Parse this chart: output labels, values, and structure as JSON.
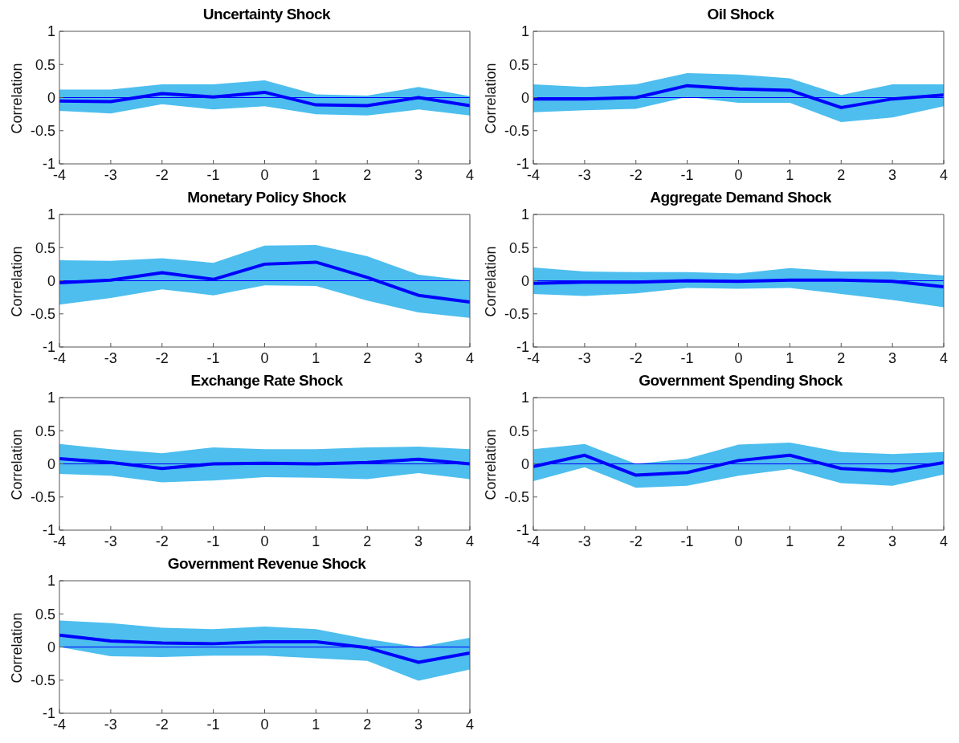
{
  "chart_data": [
    {
      "type": "line",
      "title": "Uncertainty Shock",
      "ylabel": "Correlation",
      "x": [
        -4,
        -3,
        -2,
        -1,
        0,
        1,
        2,
        3,
        4
      ],
      "xlim": [
        -4,
        4
      ],
      "xticks": [
        -4,
        -3,
        -2,
        -1,
        0,
        1,
        2,
        3,
        4
      ],
      "ylim": [
        -1,
        1
      ],
      "yticks": [
        -1,
        -0.5,
        0,
        0.5,
        1
      ],
      "grid": false,
      "legend": false,
      "marker": "none",
      "line_style": "solid",
      "ref_lines": [
        {
          "axis": "y",
          "value": 0,
          "color": "#0000ff"
        }
      ],
      "series": [
        {
          "color": "#0000ff",
          "values": [
            -0.05,
            -0.06,
            0.06,
            0.01,
            0.08,
            -0.11,
            -0.12,
            0.0,
            -0.12
          ],
          "lower": [
            -0.2,
            -0.24,
            -0.1,
            -0.18,
            -0.13,
            -0.25,
            -0.27,
            -0.18,
            -0.27
          ],
          "upper": [
            0.12,
            0.12,
            0.2,
            0.2,
            0.26,
            0.05,
            0.03,
            0.16,
            0.02
          ]
        }
      ]
    },
    {
      "type": "line",
      "title": "Oil Shock",
      "ylabel": "Correlation",
      "x": [
        -4,
        -3,
        -2,
        -1,
        0,
        1,
        2,
        3,
        4
      ],
      "xlim": [
        -4,
        4
      ],
      "xticks": [
        -4,
        -3,
        -2,
        -1,
        0,
        1,
        2,
        3,
        4
      ],
      "ylim": [
        -1,
        1
      ],
      "yticks": [
        -1,
        -0.5,
        0,
        0.5,
        1
      ],
      "grid": false,
      "legend": false,
      "marker": "none",
      "line_style": "solid",
      "ref_lines": [
        {
          "axis": "y",
          "value": 0,
          "color": "#0000ff"
        }
      ],
      "series": [
        {
          "color": "#0000ff",
          "values": [
            -0.02,
            -0.02,
            0.0,
            0.18,
            0.13,
            0.11,
            -0.15,
            -0.02,
            0.04
          ],
          "lower": [
            -0.22,
            -0.19,
            -0.17,
            0.01,
            -0.08,
            -0.08,
            -0.37,
            -0.3,
            -0.13
          ],
          "upper": [
            0.2,
            0.16,
            0.2,
            0.37,
            0.35,
            0.29,
            0.04,
            0.2,
            0.2
          ]
        }
      ]
    },
    {
      "type": "line",
      "title": "Monetary Policy Shock",
      "ylabel": "Correlation",
      "x": [
        -4,
        -3,
        -2,
        -1,
        0,
        1,
        2,
        3,
        4
      ],
      "xlim": [
        -4,
        4
      ],
      "xticks": [
        -4,
        -3,
        -2,
        -1,
        0,
        1,
        2,
        3,
        4
      ],
      "ylim": [
        -1,
        1
      ],
      "yticks": [
        -1,
        -0.5,
        0,
        0.5,
        1
      ],
      "grid": false,
      "legend": false,
      "marker": "none",
      "line_style": "solid",
      "ref_lines": [
        {
          "axis": "y",
          "value": 0,
          "color": "#0000ff"
        }
      ],
      "series": [
        {
          "color": "#0000ff",
          "values": [
            -0.03,
            0.01,
            0.12,
            0.02,
            0.25,
            0.28,
            0.05,
            -0.22,
            -0.32
          ],
          "lower": [
            -0.36,
            -0.26,
            -0.13,
            -0.22,
            -0.07,
            -0.08,
            -0.3,
            -0.48,
            -0.56
          ],
          "upper": [
            0.31,
            0.3,
            0.34,
            0.27,
            0.53,
            0.54,
            0.37,
            0.09,
            0.0
          ]
        }
      ]
    },
    {
      "type": "line",
      "title": "Aggregate Demand Shock",
      "ylabel": "Correlation",
      "x": [
        -4,
        -3,
        -2,
        -1,
        0,
        1,
        2,
        3,
        4
      ],
      "xlim": [
        -4,
        4
      ],
      "xticks": [
        -4,
        -3,
        -2,
        -1,
        0,
        1,
        2,
        3,
        4
      ],
      "ylim": [
        -1,
        1
      ],
      "yticks": [
        -1,
        -0.5,
        0,
        0.5,
        1
      ],
      "grid": false,
      "legend": false,
      "marker": "none",
      "line_style": "solid",
      "ref_lines": [
        {
          "axis": "y",
          "value": 0,
          "color": "#0000ff"
        }
      ],
      "series": [
        {
          "color": "#0000ff",
          "values": [
            -0.04,
            -0.02,
            -0.02,
            0.0,
            -0.01,
            0.01,
            0.01,
            -0.01,
            -0.09
          ],
          "lower": [
            -0.2,
            -0.23,
            -0.19,
            -0.11,
            -0.12,
            -0.11,
            -0.2,
            -0.29,
            -0.4
          ],
          "upper": [
            0.2,
            0.14,
            0.13,
            0.13,
            0.11,
            0.19,
            0.14,
            0.14,
            0.08
          ]
        }
      ]
    },
    {
      "type": "line",
      "title": "Exchange Rate Shock",
      "ylabel": "Correlation",
      "x": [
        -4,
        -3,
        -2,
        -1,
        0,
        1,
        2,
        3,
        4
      ],
      "xlim": [
        -4,
        4
      ],
      "xticks": [
        -4,
        -3,
        -2,
        -1,
        0,
        1,
        2,
        3,
        4
      ],
      "ylim": [
        -1,
        1
      ],
      "yticks": [
        -1,
        -0.5,
        0,
        0.5,
        1
      ],
      "grid": false,
      "legend": false,
      "marker": "none",
      "line_style": "solid",
      "ref_lines": [
        {
          "axis": "y",
          "value": 0,
          "color": "#0000ff"
        }
      ],
      "series": [
        {
          "color": "#0000ff",
          "values": [
            0.08,
            0.02,
            -0.07,
            0.0,
            0.01,
            0.0,
            0.02,
            0.07,
            0.0
          ],
          "lower": [
            -0.15,
            -0.18,
            -0.28,
            -0.25,
            -0.2,
            -0.21,
            -0.23,
            -0.14,
            -0.23
          ],
          "upper": [
            0.3,
            0.22,
            0.16,
            0.25,
            0.22,
            0.22,
            0.25,
            0.26,
            0.22
          ]
        }
      ]
    },
    {
      "type": "line",
      "title": "Government Spending Shock",
      "ylabel": "Correlation",
      "x": [
        -4,
        -3,
        -2,
        -1,
        0,
        1,
        2,
        3,
        4
      ],
      "xlim": [
        -4,
        4
      ],
      "xticks": [
        -4,
        -3,
        -2,
        -1,
        0,
        1,
        2,
        3,
        4
      ],
      "ylim": [
        -1,
        1
      ],
      "yticks": [
        -1,
        -0.5,
        0,
        0.5,
        1
      ],
      "grid": false,
      "legend": false,
      "marker": "none",
      "line_style": "solid",
      "ref_lines": [
        {
          "axis": "y",
          "value": 0,
          "color": "#0000ff"
        }
      ],
      "series": [
        {
          "color": "#0000ff",
          "values": [
            -0.04,
            0.13,
            -0.17,
            -0.13,
            0.05,
            0.13,
            -0.07,
            -0.11,
            0.02
          ],
          "lower": [
            -0.26,
            -0.05,
            -0.36,
            -0.33,
            -0.18,
            -0.08,
            -0.29,
            -0.33,
            -0.16
          ],
          "upper": [
            0.22,
            0.3,
            0.0,
            0.08,
            0.29,
            0.32,
            0.18,
            0.15,
            0.18
          ]
        }
      ]
    },
    {
      "type": "line",
      "title": "Government Revenue Shock",
      "ylabel": "Correlation",
      "x": [
        -4,
        -3,
        -2,
        -1,
        0,
        1,
        2,
        3,
        4
      ],
      "xlim": [
        -4,
        4
      ],
      "xticks": [
        -4,
        -3,
        -2,
        -1,
        0,
        1,
        2,
        3,
        4
      ],
      "ylim": [
        -1,
        1
      ],
      "yticks": [
        -1,
        -0.5,
        0,
        0.5,
        1
      ],
      "grid": false,
      "legend": false,
      "marker": "none",
      "line_style": "solid",
      "ref_lines": [
        {
          "axis": "y",
          "value": 0,
          "color": "#0000ff"
        }
      ],
      "series": [
        {
          "color": "#0000ff",
          "values": [
            0.18,
            0.09,
            0.06,
            0.05,
            0.08,
            0.08,
            -0.01,
            -0.23,
            -0.09
          ],
          "lower": [
            0.0,
            -0.14,
            -0.15,
            -0.13,
            -0.13,
            -0.17,
            -0.21,
            -0.51,
            -0.34
          ],
          "upper": [
            0.4,
            0.36,
            0.29,
            0.27,
            0.31,
            0.27,
            0.12,
            0.0,
            0.14
          ]
        }
      ]
    }
  ]
}
